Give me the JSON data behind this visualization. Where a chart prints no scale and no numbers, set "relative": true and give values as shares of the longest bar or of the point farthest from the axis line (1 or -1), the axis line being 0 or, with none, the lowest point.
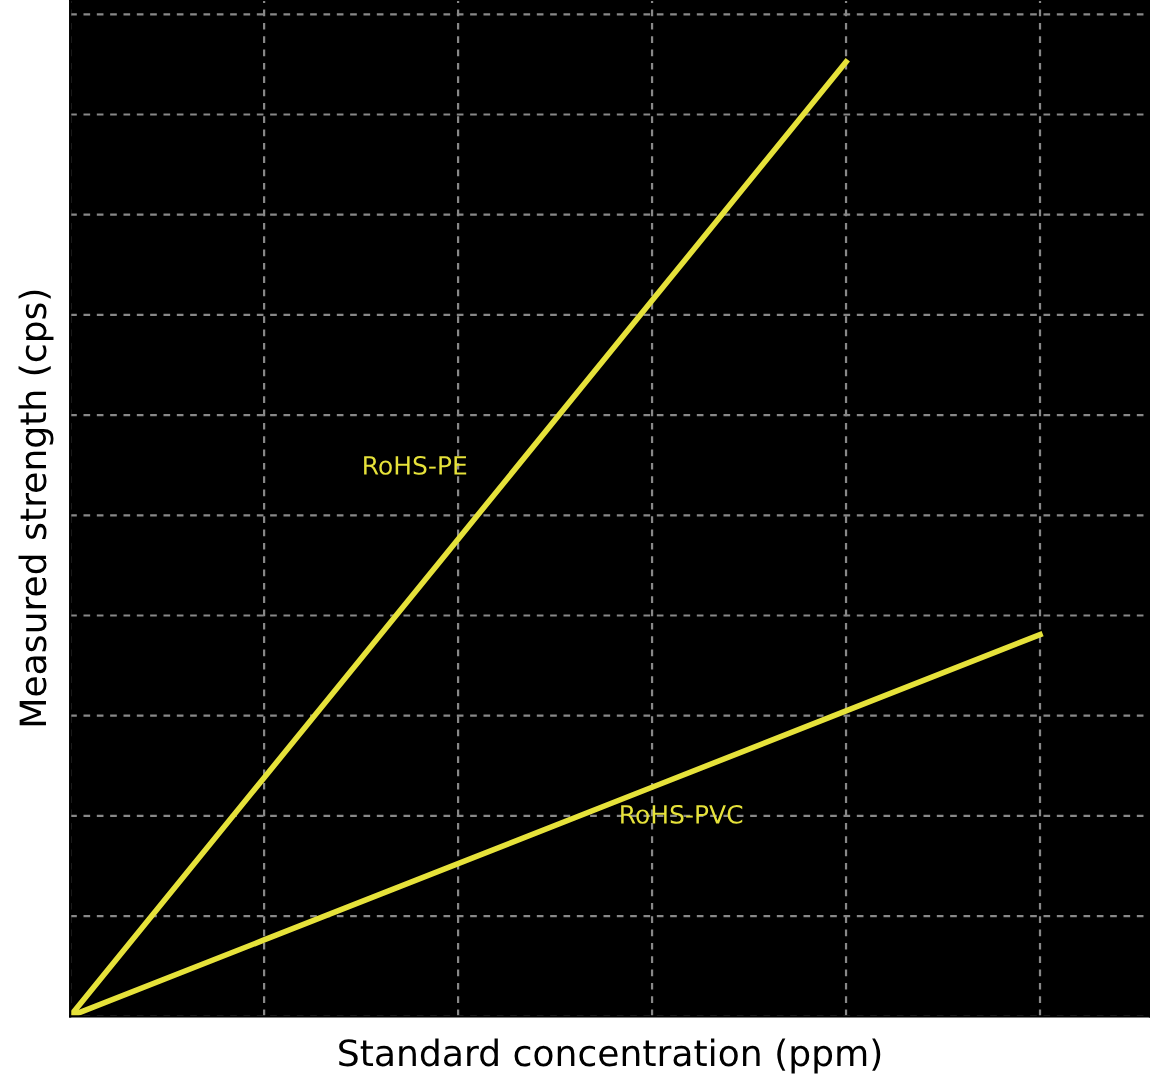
{
  "chart_data": {
    "type": "line",
    "relative": true,
    "xlabel": "Standard concentration (ppm)",
    "ylabel": "Measured strength (cps)",
    "categories": [
      null,
      null,
      null,
      null,
      null,
      null
    ],
    "series": [
      {
        "name": "RoHS-PE",
        "color": "#e6e23a",
        "values": [
          0,
          0.25,
          0.5,
          0.75,
          1,
          null
        ]
      },
      {
        "name": "RoHS-PVC",
        "color": "#e6e23a",
        "values": [
          0,
          0.08,
          0.16,
          0.24,
          0.32,
          0.4
        ]
      }
    ],
    "grid": true,
    "marker": "none",
    "line_style": "solid",
    "legend": false
  }
}
